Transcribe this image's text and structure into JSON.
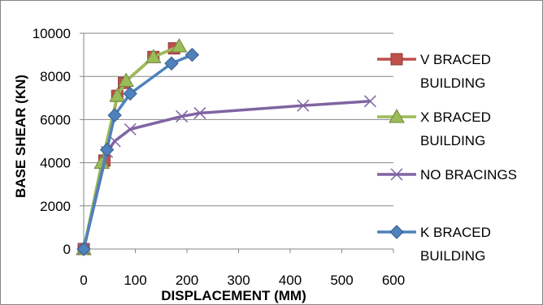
{
  "chart_data": {
    "type": "line",
    "title": "",
    "xlabel": "DISPLACEMENT (MM)",
    "ylabel": "BASE SHEAR (KN)",
    "xlim": [
      0,
      600
    ],
    "ylim": [
      0,
      10000
    ],
    "x_ticks": [
      0,
      100,
      200,
      300,
      400,
      500,
      600
    ],
    "y_ticks": [
      0,
      2000,
      4000,
      6000,
      8000,
      10000
    ],
    "grid": "horizontal major",
    "legend_position": "right",
    "series": [
      {
        "name": "V BRACED BUILDING",
        "legend_lines": [
          "V BRACED",
          "BUILDING"
        ],
        "color": "#C0504D",
        "marker": "square",
        "points": [
          [
            0,
            0
          ],
          [
            40,
            4100
          ],
          [
            65,
            7100
          ],
          [
            78,
            7700
          ],
          [
            135,
            8900
          ],
          [
            175,
            9300
          ]
        ]
      },
      {
        "name": "X BRACED BUILDING",
        "legend_lines": [
          "X BRACED",
          "BUILDING"
        ],
        "color": "#9BBB59",
        "marker": "triangle",
        "points": [
          [
            0,
            0
          ],
          [
            35,
            4000
          ],
          [
            65,
            7100
          ],
          [
            82,
            7800
          ],
          [
            135,
            8900
          ],
          [
            185,
            9400
          ]
        ]
      },
      {
        "name": "NO BRACINGS",
        "legend_lines": [
          "NO BRACINGS"
        ],
        "color": "#8064A2",
        "marker": "x",
        "points": [
          [
            0,
            0
          ],
          [
            45,
            4500
          ],
          [
            60,
            5000
          ],
          [
            90,
            5550
          ],
          [
            190,
            6150
          ],
          [
            225,
            6300
          ],
          [
            425,
            6650
          ],
          [
            555,
            6850
          ]
        ]
      },
      {
        "name": "K BRACED BUILDING",
        "legend_lines": [
          "K BRACED",
          "BUILDING"
        ],
        "color": "#4F81BD",
        "marker": "diamond",
        "points": [
          [
            0,
            0
          ],
          [
            45,
            4600
          ],
          [
            60,
            6200
          ],
          [
            90,
            7200
          ],
          [
            170,
            8600
          ],
          [
            210,
            9000
          ]
        ]
      }
    ]
  }
}
